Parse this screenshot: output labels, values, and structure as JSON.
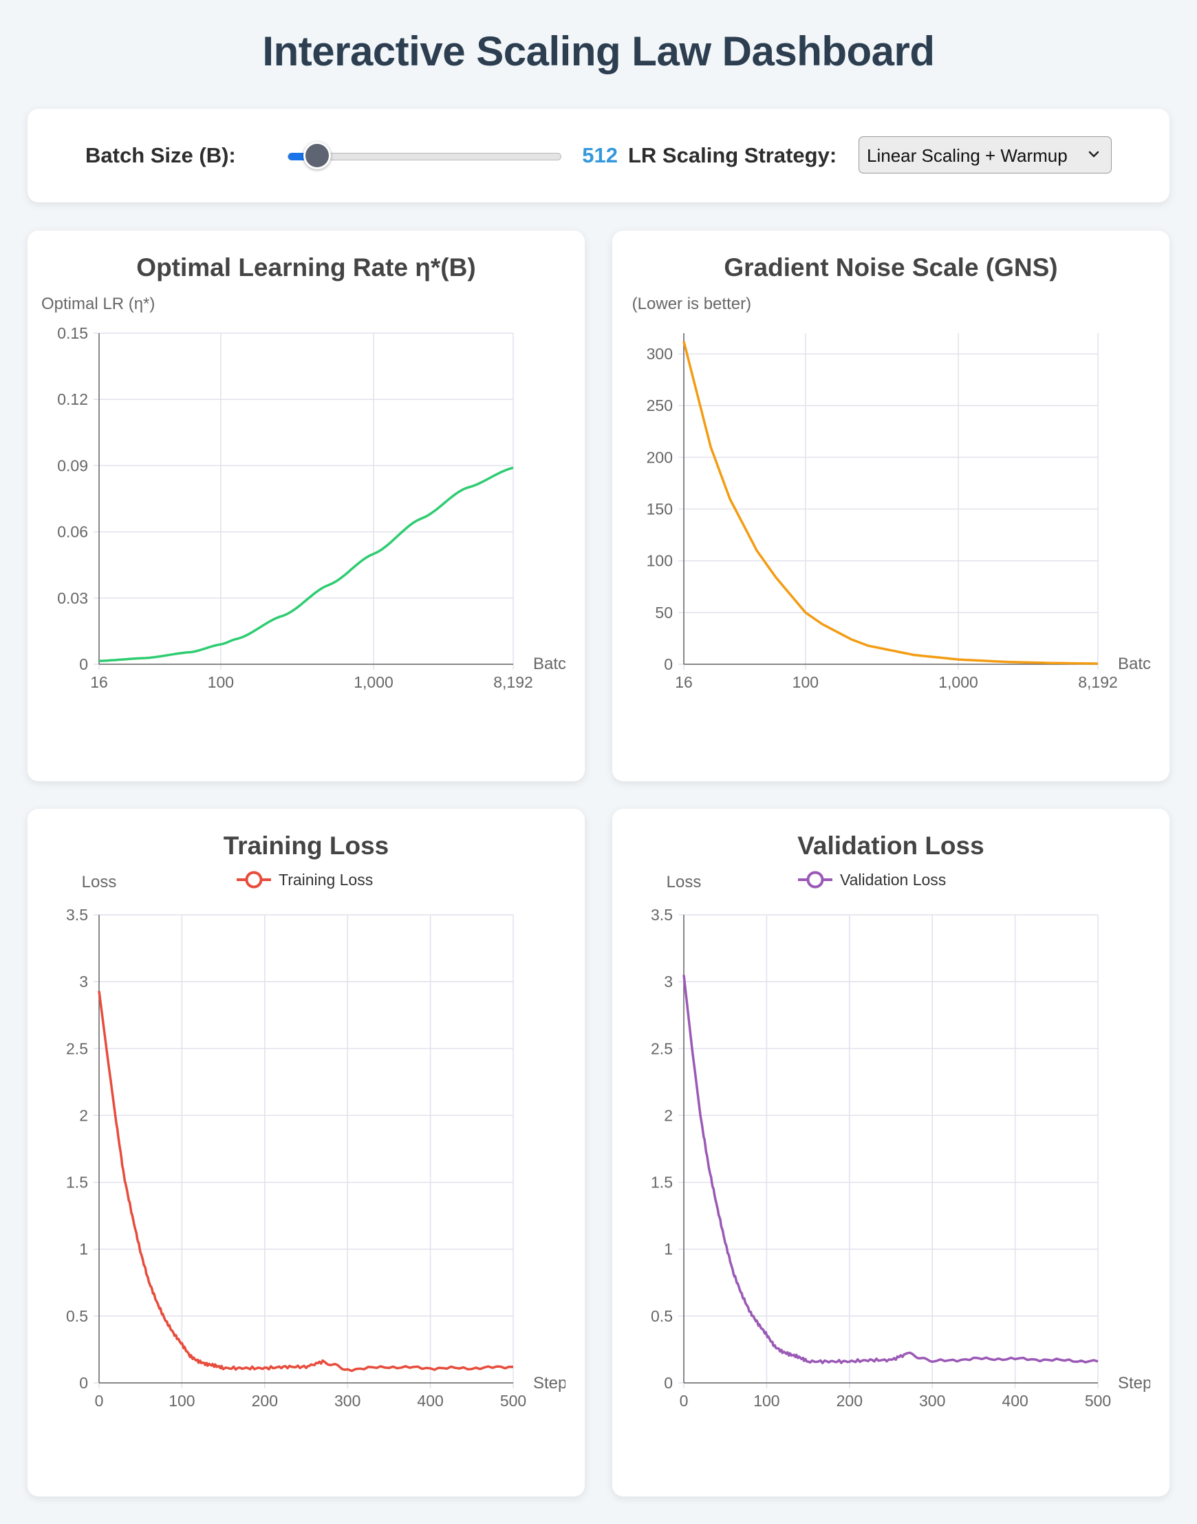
{
  "page": {
    "title": "Interactive Scaling Law Dashboard"
  },
  "controls": {
    "batch_label": "Batch Size (B):",
    "batch_value": "512",
    "slider": {
      "min": 0,
      "max": 100,
      "value": 10,
      "accent": "#1a73e8"
    },
    "strategy_label": "LR Scaling Strategy:",
    "strategy_selected": "Linear Scaling + Warmup"
  },
  "colors": {
    "lr_line": "#2ecc71",
    "gns_line": "#f39c12",
    "train_line": "#e74c3c",
    "val_line": "#9b59b6",
    "title": "#2c3e50",
    "value_text": "#3498db"
  },
  "charts": {
    "lr": {
      "title": "Optimal Learning Rate η*(B)",
      "ylabel": "Optimal LR (η*)",
      "xlabel": "Batch Size",
      "xticks": [
        "16",
        "100",
        "1,000",
        "8,192"
      ],
      "yticks": [
        "0",
        "0.03",
        "0.06",
        "0.09",
        "0.12",
        "0.15"
      ]
    },
    "gns": {
      "title": "Gradient Noise Scale (GNS)",
      "ylabel": "GNS (Lower is better)",
      "xlabel": "Batch Size",
      "xticks": [
        "16",
        "100",
        "1,000",
        "8,192"
      ],
      "yticks": [
        "0",
        "50",
        "100",
        "150",
        "200",
        "250",
        "300"
      ]
    },
    "train": {
      "title": "Training Loss",
      "legend": "Training Loss",
      "ylabel": "Loss",
      "xlabel": "Steps",
      "xticks": [
        "0",
        "100",
        "200",
        "300",
        "400",
        "500"
      ],
      "yticks": [
        "0",
        "0.5",
        "1",
        "1.5",
        "2",
        "2.5",
        "3",
        "3.5"
      ]
    },
    "val": {
      "title": "Validation Loss",
      "legend": "Validation Loss",
      "ylabel": "Loss",
      "xlabel": "Steps",
      "xticks": [
        "0",
        "100",
        "200",
        "300",
        "400",
        "500"
      ],
      "yticks": [
        "0",
        "0.5",
        "1",
        "1.5",
        "2",
        "2.5",
        "3",
        "3.5"
      ]
    }
  },
  "chart_data": [
    {
      "type": "line",
      "title": "Optimal Learning Rate η*(B)",
      "xlabel": "Batch Size",
      "ylabel": "Optimal LR (η*)",
      "xscale": "log",
      "xlim": [
        16,
        8192
      ],
      "ylim": [
        0,
        0.15
      ],
      "grid": true,
      "series": [
        {
          "x": [
            16,
            32,
            64,
            100,
            128,
            256,
            512,
            1000,
            2048,
            4096,
            8192
          ],
          "y": [
            0.0015,
            0.0028,
            0.0055,
            0.009,
            0.0115,
            0.022,
            0.036,
            0.05,
            0.066,
            0.08,
            0.089
          ]
        }
      ]
    },
    {
      "type": "line",
      "title": "Gradient Noise Scale (GNS)",
      "xlabel": "Batch Size",
      "ylabel": "GNS (Lower is better)",
      "xscale": "log",
      "xlim": [
        16,
        8192
      ],
      "ylim": [
        0,
        320
      ],
      "grid": true,
      "series": [
        {
          "x": [
            16,
            24,
            32,
            48,
            64,
            100,
            128,
            200,
            256,
            512,
            1000,
            2048,
            4096,
            8192
          ],
          "y": [
            312,
            210,
            160,
            110,
            84,
            50,
            39,
            24,
            18,
            9,
            4.6,
            2.3,
            1.2,
            0.6
          ]
        }
      ]
    },
    {
      "type": "line",
      "title": "Training Loss",
      "xlabel": "Steps",
      "ylabel": "Loss",
      "xlim": [
        0,
        500
      ],
      "ylim": [
        0,
        3.5
      ],
      "grid": true,
      "legend": "top-center",
      "series": [
        {
          "name": "Training Loss",
          "x": [
            0,
            10,
            20,
            30,
            40,
            50,
            60,
            70,
            80,
            90,
            100,
            110,
            120,
            130,
            140,
            150,
            175,
            200,
            225,
            250,
            270,
            300,
            350,
            400,
            450,
            500
          ],
          "y": [
            2.93,
            2.45,
            1.98,
            1.55,
            1.25,
            0.98,
            0.76,
            0.6,
            0.47,
            0.37,
            0.29,
            0.2,
            0.16,
            0.14,
            0.13,
            0.11,
            0.11,
            0.11,
            0.12,
            0.12,
            0.16,
            0.1,
            0.12,
            0.11,
            0.11,
            0.12
          ]
        }
      ]
    },
    {
      "type": "line",
      "title": "Validation Loss",
      "xlabel": "Steps",
      "ylabel": "Loss",
      "xlim": [
        0,
        500
      ],
      "ylim": [
        0,
        3.5
      ],
      "grid": true,
      "legend": "top-center",
      "series": [
        {
          "name": "Validation Loss",
          "x": [
            0,
            10,
            20,
            30,
            40,
            50,
            60,
            70,
            80,
            90,
            100,
            110,
            120,
            130,
            140,
            150,
            175,
            200,
            225,
            250,
            270,
            300,
            350,
            400,
            450,
            500
          ],
          "y": [
            3.05,
            2.5,
            2.0,
            1.62,
            1.32,
            1.05,
            0.82,
            0.66,
            0.53,
            0.44,
            0.36,
            0.27,
            0.23,
            0.21,
            0.19,
            0.16,
            0.16,
            0.16,
            0.17,
            0.17,
            0.22,
            0.16,
            0.18,
            0.18,
            0.17,
            0.16
          ]
        }
      ]
    }
  ]
}
